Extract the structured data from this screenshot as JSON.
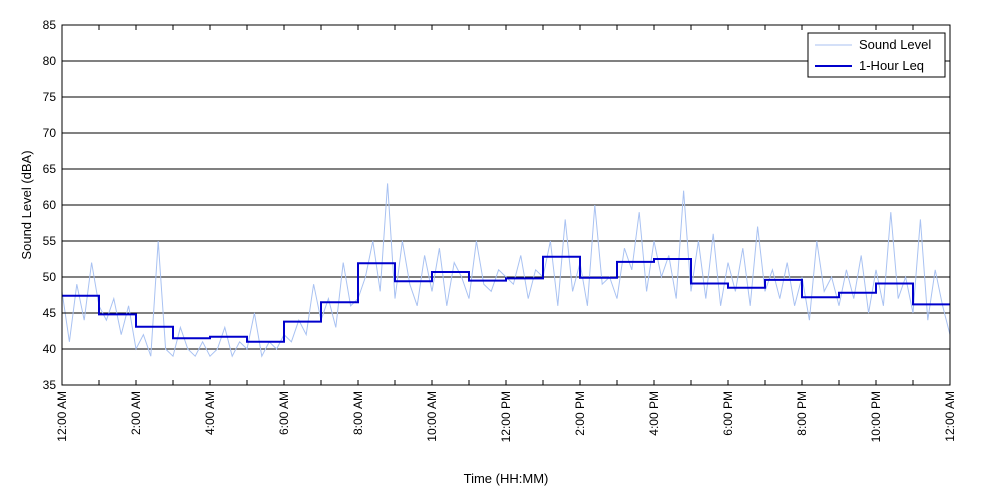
{
  "chart_data": {
    "type": "line",
    "title": "",
    "xlabel": "Time (HH:MM)",
    "ylabel": "Sound Level (dBA)",
    "ylim": [
      35,
      85
    ],
    "xlim": [
      0,
      24
    ],
    "yticks": [
      35,
      40,
      45,
      50,
      55,
      60,
      65,
      70,
      75,
      80,
      85
    ],
    "xticks": [
      {
        "hour": 0,
        "label": "12:00 AM"
      },
      {
        "hour": 2,
        "label": "2:00 AM"
      },
      {
        "hour": 4,
        "label": "4:00 AM"
      },
      {
        "hour": 6,
        "label": "6:00 AM"
      },
      {
        "hour": 8,
        "label": "8:00 AM"
      },
      {
        "hour": 10,
        "label": "10:00 AM"
      },
      {
        "hour": 12,
        "label": "12:00 PM"
      },
      {
        "hour": 14,
        "label": "2:00 PM"
      },
      {
        "hour": 16,
        "label": "4:00 PM"
      },
      {
        "hour": 18,
        "label": "6:00 PM"
      },
      {
        "hour": 20,
        "label": "8:00 PM"
      },
      {
        "hour": 22,
        "label": "10:00 PM"
      },
      {
        "hour": 24,
        "label": "12:00 AM"
      }
    ],
    "grid": "horizontal",
    "legend_position": "top-right",
    "series": [
      {
        "name": "Sound Level",
        "color": "#a9c2f2",
        "style": "thin",
        "x": [
          0,
          0.2,
          0.4,
          0.6,
          0.8,
          1,
          1.2,
          1.4,
          1.6,
          1.8,
          2,
          2.2,
          2.4,
          2.6,
          2.8,
          3,
          3.2,
          3.4,
          3.6,
          3.8,
          4,
          4.2,
          4.4,
          4.6,
          4.8,
          5,
          5.2,
          5.4,
          5.6,
          5.8,
          6,
          6.2,
          6.4,
          6.6,
          6.8,
          7,
          7.2,
          7.4,
          7.6,
          7.8,
          8,
          8.2,
          8.4,
          8.6,
          8.8,
          9,
          9.2,
          9.4,
          9.6,
          9.8,
          10,
          10.2,
          10.4,
          10.6,
          10.8,
          11,
          11.2,
          11.4,
          11.6,
          11.8,
          12,
          12.2,
          12.4,
          12.6,
          12.8,
          13,
          13.2,
          13.4,
          13.6,
          13.8,
          14,
          14.2,
          14.4,
          14.6,
          14.8,
          15,
          15.2,
          15.4,
          15.6,
          15.8,
          16,
          16.2,
          16.4,
          16.6,
          16.8,
          17,
          17.2,
          17.4,
          17.6,
          17.8,
          18,
          18.2,
          18.4,
          18.6,
          18.8,
          19,
          19.2,
          19.4,
          19.6,
          19.8,
          20,
          20.2,
          20.4,
          20.6,
          20.8,
          21,
          21.2,
          21.4,
          21.6,
          21.8,
          22,
          22.2,
          22.4,
          22.6,
          22.8,
          23,
          23.2,
          23.4,
          23.6,
          23.8,
          24
        ],
        "values": [
          48,
          41,
          49,
          44,
          52,
          46,
          44,
          47,
          42,
          46,
          40,
          42,
          39,
          55,
          40,
          39,
          43,
          40,
          39,
          41,
          39,
          40,
          43,
          39,
          41,
          40,
          45,
          39,
          41,
          40,
          42,
          41,
          44,
          42,
          49,
          44,
          47,
          43,
          52,
          46,
          47,
          50,
          55,
          48,
          63,
          47,
          55,
          49,
          46,
          53,
          48,
          54,
          46,
          52,
          50,
          47,
          55,
          49,
          48,
          51,
          50,
          49,
          53,
          47,
          51,
          50,
          55,
          46,
          58,
          48,
          52,
          46,
          60,
          49,
          50,
          47,
          54,
          51,
          59,
          48,
          55,
          50,
          53,
          47,
          62,
          48,
          55,
          47,
          56,
          46,
          52,
          48,
          54,
          46,
          57,
          48,
          51,
          47,
          52,
          46,
          50,
          44,
          55,
          48,
          50,
          46,
          51,
          47,
          53,
          45,
          51,
          46,
          59,
          47,
          50,
          45,
          58,
          44,
          51,
          46,
          42
        ]
      },
      {
        "name": "1-Hour Leq",
        "color": "#0000cc",
        "style": "step",
        "hourly_values": [
          47.4,
          44.8,
          43.1,
          41.5,
          41.7,
          41.0,
          43.8,
          46.5,
          51.9,
          49.4,
          50.7,
          49.5,
          49.8,
          52.8,
          49.9,
          52.1,
          52.5,
          49.1,
          48.5,
          49.6,
          47.2,
          47.8,
          49.1,
          46.2
        ]
      }
    ]
  }
}
